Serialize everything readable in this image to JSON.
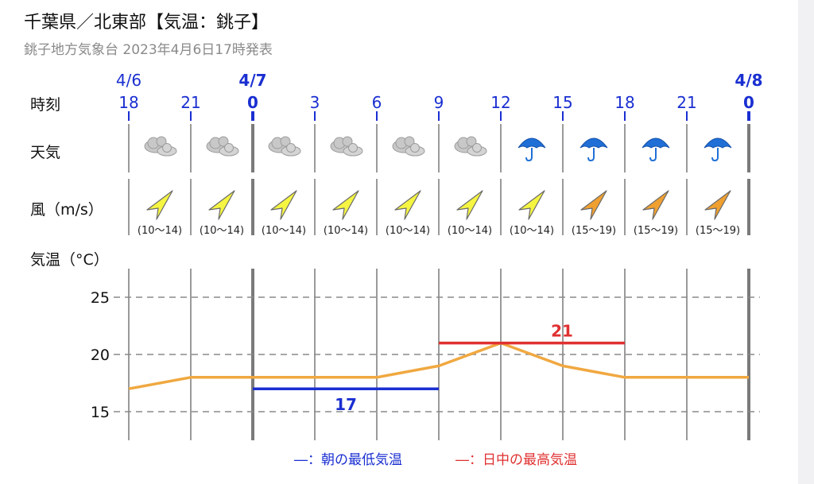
{
  "header": {
    "title": "千葉県／北東部【気温：銚子】",
    "subtitle": "銚子地方気象台 2023年4月6日17時発表"
  },
  "rows": {
    "time_label": "時刻",
    "weather_label": "天気",
    "wind_label": "風（m/s）",
    "temp_label": "気温（°C）"
  },
  "dates": [
    {
      "col": 0,
      "label": "4/6",
      "bold": false
    },
    {
      "col": 2,
      "label": "4/7",
      "bold": true
    },
    {
      "col": 10,
      "label": "4/8",
      "bold": true
    }
  ],
  "hours": [
    {
      "label": "18",
      "day_start": false
    },
    {
      "label": "21",
      "day_start": false
    },
    {
      "label": "0",
      "day_start": true
    },
    {
      "label": "3",
      "day_start": false
    },
    {
      "label": "6",
      "day_start": false
    },
    {
      "label": "9",
      "day_start": false
    },
    {
      "label": "12",
      "day_start": false
    },
    {
      "label": "15",
      "day_start": false
    },
    {
      "label": "18",
      "day_start": false
    },
    {
      "label": "21",
      "day_start": false
    },
    {
      "label": "0",
      "day_start": true
    }
  ],
  "weather": [
    "cloud-icon",
    "cloud-icon",
    "cloud-icon",
    "cloud-icon",
    "cloud-icon",
    "cloud-icon",
    "umbrella-icon",
    "umbrella-icon",
    "umbrella-icon",
    "umbrella-icon"
  ],
  "wind": [
    {
      "range": "(10～14)",
      "direction": "southwest",
      "color": "#f5f542"
    },
    {
      "range": "(10～14)",
      "direction": "southwest",
      "color": "#f5f542"
    },
    {
      "range": "(10～14)",
      "direction": "southwest",
      "color": "#f5f542"
    },
    {
      "range": "(10～14)",
      "direction": "southwest",
      "color": "#f5f542"
    },
    {
      "range": "(10～14)",
      "direction": "southwest",
      "color": "#f5f542"
    },
    {
      "range": "(10～14)",
      "direction": "southwest",
      "color": "#f5f542"
    },
    {
      "range": "(10～14)",
      "direction": "southwest",
      "color": "#f5f542"
    },
    {
      "range": "(15～19)",
      "direction": "southwest",
      "color": "#f0a030"
    },
    {
      "range": "(15～19)",
      "direction": "southwest",
      "color": "#f0a030"
    },
    {
      "range": "(15～19)",
      "direction": "southwest",
      "color": "#f0a030"
    }
  ],
  "chart_data": {
    "type": "line",
    "x": [
      "18",
      "21",
      "0",
      "3",
      "6",
      "9",
      "12",
      "15",
      "18",
      "21",
      "0"
    ],
    "series": [
      {
        "values": [
          17,
          18,
          18,
          18,
          18,
          19,
          21,
          19,
          18,
          18,
          18
        ],
        "color": "#f0a840"
      }
    ],
    "yticks": [
      15,
      20,
      25
    ],
    "ylim": [
      12.5,
      27.5
    ],
    "grid": "dashed-horizontal",
    "min_temp": {
      "value": 17,
      "label": "17",
      "from_col": 2,
      "to_col": 5,
      "color": "#1a2fd1"
    },
    "max_temp": {
      "value": 21,
      "label": "21",
      "from_col": 5,
      "to_col": 8,
      "color": "#e03030"
    }
  },
  "legend": {
    "min_label": "―：朝の最低気温",
    "max_label": "―：日中の最高気温"
  }
}
